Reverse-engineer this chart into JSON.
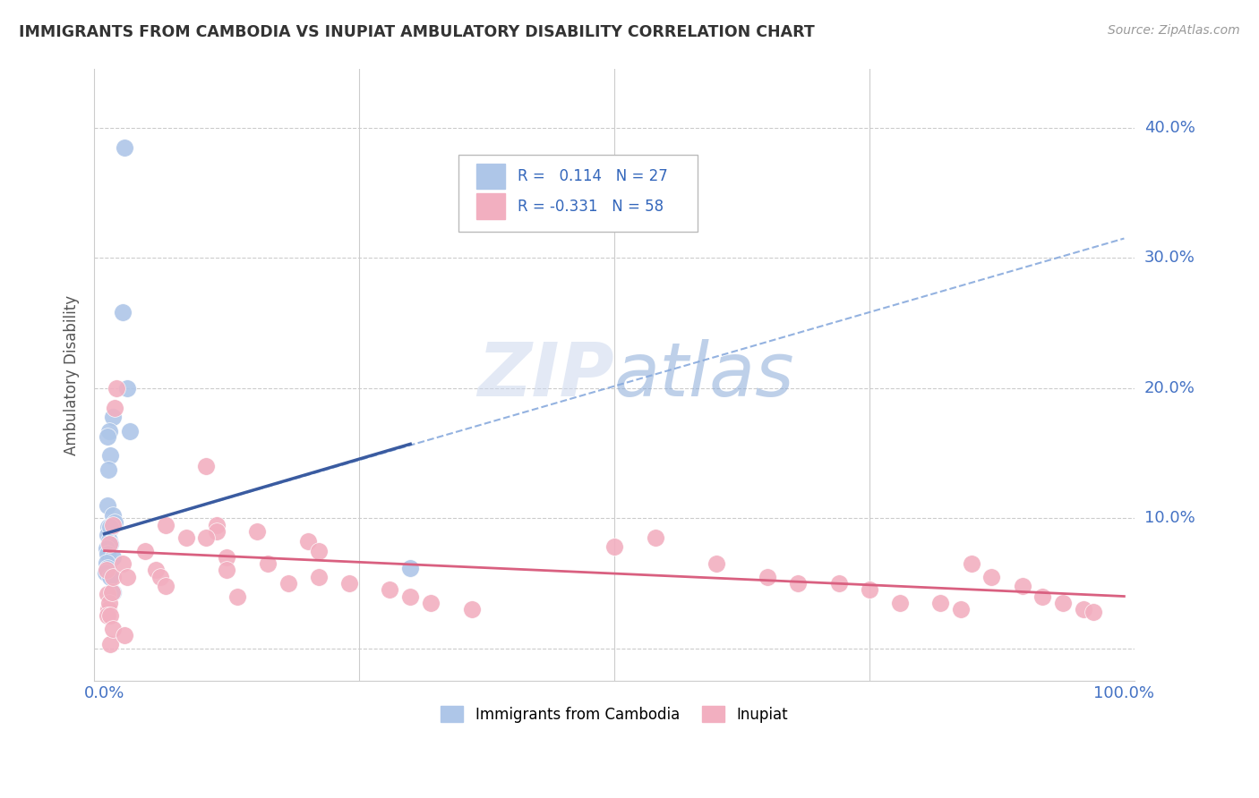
{
  "title": "IMMIGRANTS FROM CAMBODIA VS INUPIAT AMBULATORY DISABILITY CORRELATION CHART",
  "source": "Source: ZipAtlas.com",
  "ylabel": "Ambulatory Disability",
  "xlim": [
    -0.01,
    1.01
  ],
  "ylim": [
    -0.025,
    0.445
  ],
  "xtick_vals": [
    0.0,
    0.25,
    0.5,
    0.75,
    1.0
  ],
  "xtick_labels": [
    "0.0%",
    "",
    "",
    "",
    "100.0%"
  ],
  "ytick_vals": [
    0.0,
    0.1,
    0.2,
    0.3,
    0.4
  ],
  "ytick_labels": [
    "",
    "10.0%",
    "20.0%",
    "30.0%",
    "40.0%"
  ],
  "legend1_R": " 0.114",
  "legend1_N": "27",
  "legend2_R": "-0.331",
  "legend2_N": "58",
  "blue_fill": "#aec6e8",
  "pink_fill": "#f2afc0",
  "blue_line_color": "#3a5ba0",
  "pink_line_color": "#d96080",
  "dash_line_color": "#88aadd",
  "grid_color": "#cccccc",
  "blue_scatter_x": [
    0.02,
    0.018,
    0.022,
    0.008,
    0.005,
    0.003,
    0.006,
    0.004,
    0.003,
    0.008,
    0.01,
    0.004,
    0.006,
    0.003,
    0.005,
    0.006,
    0.002,
    0.003,
    0.008,
    0.002,
    0.003,
    0.001,
    0.006,
    0.008,
    0.006,
    0.025,
    0.3
  ],
  "blue_scatter_y": [
    0.385,
    0.258,
    0.2,
    0.178,
    0.167,
    0.163,
    0.148,
    0.137,
    0.11,
    0.102,
    0.097,
    0.093,
    0.092,
    0.087,
    0.083,
    0.08,
    0.077,
    0.073,
    0.07,
    0.066,
    0.062,
    0.058,
    0.055,
    0.043,
    0.093,
    0.167,
    0.062
  ],
  "pink_scatter_x": [
    0.002,
    0.003,
    0.004,
    0.005,
    0.003,
    0.007,
    0.008,
    0.005,
    0.006,
    0.012,
    0.01,
    0.008,
    0.006,
    0.008,
    0.02,
    0.018,
    0.022,
    0.04,
    0.05,
    0.055,
    0.06,
    0.06,
    0.08,
    0.1,
    0.11,
    0.12,
    0.11,
    0.1,
    0.12,
    0.13,
    0.15,
    0.16,
    0.18,
    0.2,
    0.21,
    0.21,
    0.24,
    0.28,
    0.3,
    0.32,
    0.36,
    0.5,
    0.54,
    0.6,
    0.65,
    0.68,
    0.72,
    0.75,
    0.78,
    0.82,
    0.84,
    0.85,
    0.87,
    0.9,
    0.92,
    0.94,
    0.96,
    0.97
  ],
  "pink_scatter_y": [
    0.06,
    0.042,
    0.03,
    0.035,
    0.025,
    0.043,
    0.055,
    0.08,
    0.003,
    0.2,
    0.185,
    0.095,
    0.025,
    0.015,
    0.01,
    0.065,
    0.055,
    0.075,
    0.06,
    0.055,
    0.048,
    0.095,
    0.085,
    0.14,
    0.095,
    0.07,
    0.09,
    0.085,
    0.06,
    0.04,
    0.09,
    0.065,
    0.05,
    0.082,
    0.075,
    0.055,
    0.05,
    0.045,
    0.04,
    0.035,
    0.03,
    0.078,
    0.085,
    0.065,
    0.055,
    0.05,
    0.05,
    0.045,
    0.035,
    0.035,
    0.03,
    0.065,
    0.055,
    0.048,
    0.04,
    0.035,
    0.03,
    0.028
  ],
  "blue_line_x0": 0.0,
  "blue_line_x1": 0.3,
  "blue_line_y0": 0.088,
  "blue_line_y1": 0.157,
  "dash_line_x0": 0.0,
  "dash_line_x1": 1.0,
  "dash_line_y0": 0.088,
  "dash_line_y1": 0.315,
  "pink_line_x0": 0.0,
  "pink_line_x1": 1.0,
  "pink_line_y0": 0.075,
  "pink_line_y1": 0.04
}
